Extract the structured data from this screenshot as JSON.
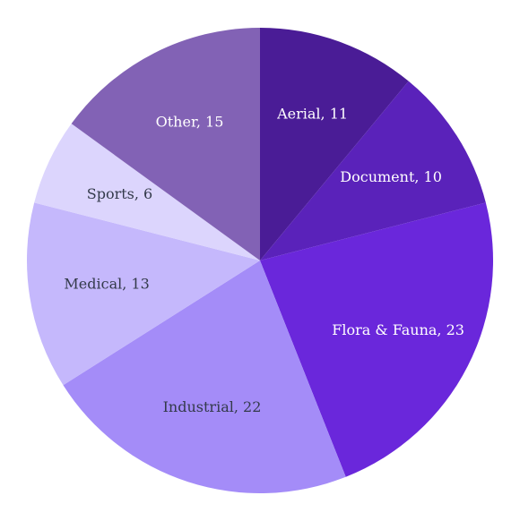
{
  "chart_data": {
    "type": "pie",
    "title": "",
    "start_angle_deg": 0,
    "direction": "clockwise",
    "slices": [
      {
        "label": "Aerial, 11",
        "value": 11,
        "color": "#4a1c96",
        "text_color": "#ffffff"
      },
      {
        "label": "Document, 10",
        "value": 10,
        "color": "#5a22ba",
        "text_color": "#ffffff"
      },
      {
        "label": "Flora & Fauna, 23",
        "value": 23,
        "color": "#6a27db",
        "text_color": "#ffffff"
      },
      {
        "label": "Industrial, 22",
        "value": 22,
        "color": "#a48cf8",
        "text_color": "#333a4a"
      },
      {
        "label": "Medical, 13",
        "value": 13,
        "color": "#c5b8fc",
        "text_color": "#333a4a"
      },
      {
        "label": "Sports, 6",
        "value": 6,
        "color": "#dcd5fd",
        "text_color": "#333a4a"
      },
      {
        "label": "Other, 15",
        "value": 15,
        "color": "#8262b5",
        "text_color": "#ffffff"
      }
    ]
  }
}
